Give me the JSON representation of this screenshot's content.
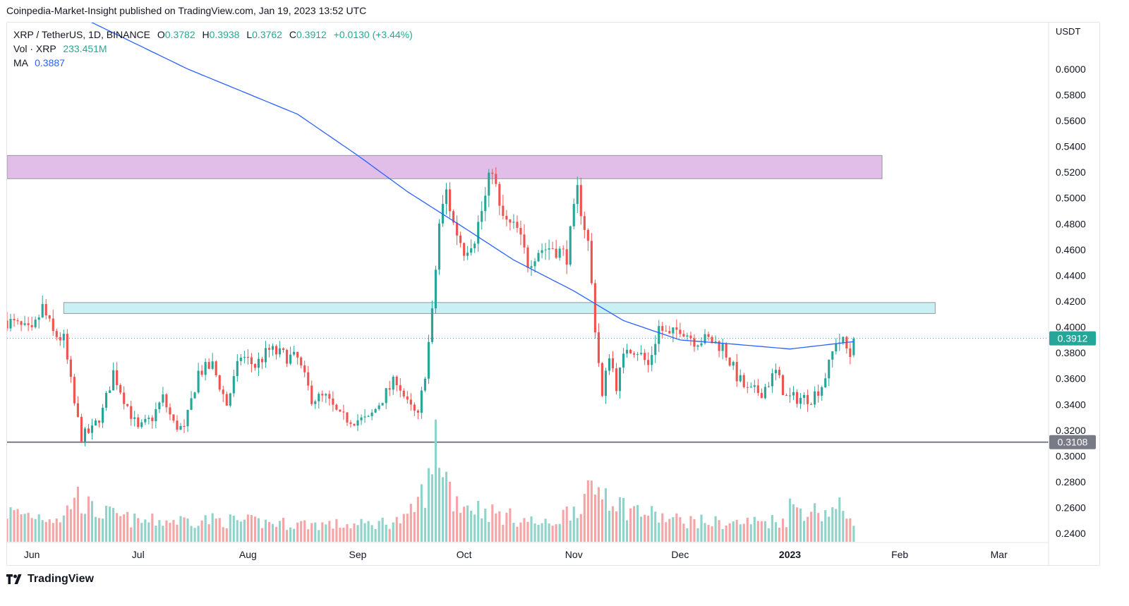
{
  "publisher_line": "Coinpedia-Market-Insight published on TradingView.com, Jan 19, 2023 13:52 UTC",
  "legend": {
    "symbol": "XRP / TetherUS, 1D, BINANCE",
    "open_label": "O",
    "open": "0.3782",
    "high_label": "H",
    "high": "0.3938",
    "low_label": "L",
    "low": "0.3762",
    "close_label": "C",
    "close": "0.3912",
    "change": "+0.0130 (+3.44%)",
    "vol_label": "Vol · XRP",
    "vol": "233.451M",
    "ma_label": "MA",
    "ma": "0.3887"
  },
  "brand": {
    "name": "TradingView"
  },
  "colors": {
    "up": "#26a69a",
    "down": "#ef5350",
    "vol_up": "#8fd3ca",
    "vol_down": "#f5a5a5",
    "ma": "#2962ff",
    "resistance_zone": "#e1bee7",
    "support_zone": "#c9f1f4",
    "support_line": "#787b86",
    "price_badge": "#26a69a",
    "support_badge": "#787b86"
  },
  "chart_data": {
    "type": "candlestick",
    "symbol": "XRP / TetherUS",
    "interval": "1D",
    "exchange": "BINANCE",
    "y_unit": "USDT",
    "ylim": [
      0.233,
      0.636
    ],
    "y_ticks": [
      "0.6000",
      "0.5800",
      "0.5600",
      "0.5400",
      "0.5200",
      "0.5000",
      "0.4800",
      "0.4600",
      "0.4400",
      "0.4200",
      "0.4000",
      "0.3800",
      "0.3600",
      "0.3400",
      "0.3200",
      "0.3000",
      "0.2800",
      "0.2600",
      "0.2400"
    ],
    "x_ticks": [
      {
        "label": "Jun",
        "date": "2022-06-01",
        "bold": false
      },
      {
        "label": "Jul",
        "date": "2022-07-01",
        "bold": false
      },
      {
        "label": "Aug",
        "date": "2022-08-01",
        "bold": false
      },
      {
        "label": "Sep",
        "date": "2022-09-01",
        "bold": false
      },
      {
        "label": "Oct",
        "date": "2022-10-01",
        "bold": false
      },
      {
        "label": "Nov",
        "date": "2022-11-01",
        "bold": false
      },
      {
        "label": "Dec",
        "date": "2022-12-01",
        "bold": false
      },
      {
        "label": "2023",
        "date": "2023-01-01",
        "bold": true
      },
      {
        "label": "Feb",
        "date": "2023-02-01",
        "bold": false
      },
      {
        "label": "Mar",
        "date": "2023-03-01",
        "bold": false
      }
    ],
    "x_range": [
      "2022-05-25",
      "2023-03-15"
    ],
    "price_path": [
      [
        "2022-05-25",
        0.405
      ],
      [
        "2022-06-01",
        0.395
      ],
      [
        "2022-06-04",
        0.415
      ],
      [
        "2022-06-07",
        0.395
      ],
      [
        "2022-06-10",
        0.39
      ],
      [
        "2022-06-13",
        0.34
      ],
      [
        "2022-06-15",
        0.315
      ],
      [
        "2022-06-18",
        0.32
      ],
      [
        "2022-06-21",
        0.335
      ],
      [
        "2022-06-24",
        0.365
      ],
      [
        "2022-06-27",
        0.345
      ],
      [
        "2022-07-01",
        0.32
      ],
      [
        "2022-07-05",
        0.33
      ],
      [
        "2022-07-08",
        0.345
      ],
      [
        "2022-07-11",
        0.325
      ],
      [
        "2022-07-14",
        0.32
      ],
      [
        "2022-07-18",
        0.365
      ],
      [
        "2022-07-22",
        0.37
      ],
      [
        "2022-07-26",
        0.34
      ],
      [
        "2022-07-30",
        0.378
      ],
      [
        "2022-08-03",
        0.37
      ],
      [
        "2022-08-07",
        0.382
      ],
      [
        "2022-08-11",
        0.378
      ],
      [
        "2022-08-15",
        0.375
      ],
      [
        "2022-08-19",
        0.345
      ],
      [
        "2022-08-23",
        0.345
      ],
      [
        "2022-08-27",
        0.33
      ],
      [
        "2022-08-31",
        0.328
      ],
      [
        "2022-09-04",
        0.328
      ],
      [
        "2022-09-08",
        0.345
      ],
      [
        "2022-09-12",
        0.36
      ],
      [
        "2022-09-15",
        0.34
      ],
      [
        "2022-09-18",
        0.33
      ],
      [
        "2022-09-20",
        0.365
      ],
      [
        "2022-09-22",
        0.41
      ],
      [
        "2022-09-24",
        0.48
      ],
      [
        "2022-09-26",
        0.505
      ],
      [
        "2022-09-28",
        0.48
      ],
      [
        "2022-10-01",
        0.46
      ],
      [
        "2022-10-04",
        0.47
      ],
      [
        "2022-10-07",
        0.5
      ],
      [
        "2022-10-09",
        0.525
      ],
      [
        "2022-10-11",
        0.49
      ],
      [
        "2022-10-13",
        0.48
      ],
      [
        "2022-10-16",
        0.475
      ],
      [
        "2022-10-19",
        0.45
      ],
      [
        "2022-10-22",
        0.46
      ],
      [
        "2022-10-26",
        0.462
      ],
      [
        "2022-10-30",
        0.455
      ],
      [
        "2022-11-02",
        0.505
      ],
      [
        "2022-11-05",
        0.465
      ],
      [
        "2022-11-07",
        0.4
      ],
      [
        "2022-11-09",
        0.345
      ],
      [
        "2022-11-11",
        0.38
      ],
      [
        "2022-11-13",
        0.355
      ],
      [
        "2022-11-16",
        0.385
      ],
      [
        "2022-11-19",
        0.382
      ],
      [
        "2022-11-22",
        0.37
      ],
      [
        "2022-11-25",
        0.4
      ],
      [
        "2022-11-28",
        0.392
      ],
      [
        "2022-12-01",
        0.4
      ],
      [
        "2022-12-05",
        0.39
      ],
      [
        "2022-12-09",
        0.39
      ],
      [
        "2022-12-13",
        0.385
      ],
      [
        "2022-12-17",
        0.362
      ],
      [
        "2022-12-20",
        0.35
      ],
      [
        "2022-12-24",
        0.35
      ],
      [
        "2022-12-28",
        0.365
      ],
      [
        "2022-12-31",
        0.345
      ],
      [
        "2023-01-03",
        0.345
      ],
      [
        "2023-01-07",
        0.345
      ],
      [
        "2023-01-10",
        0.355
      ],
      [
        "2023-01-12",
        0.37
      ],
      [
        "2023-01-14",
        0.39
      ],
      [
        "2023-01-16",
        0.388
      ],
      [
        "2023-01-18",
        0.378
      ],
      [
        "2023-01-19",
        0.391
      ]
    ],
    "volume_path_M": [
      [
        "2022-05-25",
        160
      ],
      [
        "2022-06-10",
        130
      ],
      [
        "2022-06-13",
        260
      ],
      [
        "2022-06-18",
        170
      ],
      [
        "2022-07-01",
        110
      ],
      [
        "2022-07-20",
        120
      ],
      [
        "2022-08-10",
        100
      ],
      [
        "2022-09-01",
        90
      ],
      [
        "2022-09-15",
        120
      ],
      [
        "2022-09-22",
        350
      ],
      [
        "2022-09-23",
        560
      ],
      [
        "2022-09-28",
        230
      ],
      [
        "2022-10-10",
        150
      ],
      [
        "2022-10-25",
        90
      ],
      [
        "2022-11-09",
        300
      ],
      [
        "2022-11-15",
        190
      ],
      [
        "2022-11-28",
        120
      ],
      [
        "2022-12-15",
        100
      ],
      [
        "2022-12-31",
        120
      ],
      [
        "2023-01-01",
        190
      ],
      [
        "2023-01-10",
        160
      ],
      [
        "2023-01-15",
        180
      ],
      [
        "2023-01-19",
        130
      ]
    ],
    "ma_path": [
      [
        "2022-06-15",
        0.64
      ],
      [
        "2022-07-15",
        0.6
      ],
      [
        "2022-08-15",
        0.565
      ],
      [
        "2022-09-01",
        0.533
      ],
      [
        "2022-09-15",
        0.505
      ],
      [
        "2022-10-01",
        0.477
      ],
      [
        "2022-10-15",
        0.452
      ],
      [
        "2022-11-01",
        0.428
      ],
      [
        "2022-11-15",
        0.405
      ],
      [
        "2022-12-01",
        0.39
      ],
      [
        "2022-12-15",
        0.387
      ],
      [
        "2023-01-01",
        0.383
      ],
      [
        "2023-01-19",
        0.3887
      ]
    ],
    "zones": [
      {
        "from": "2022-05-25",
        "to": "2023-01-27",
        "low": 0.515,
        "high": 0.533,
        "color": "resistance_zone"
      },
      {
        "from": "2022-06-10",
        "to": "2023-02-11",
        "low": 0.4105,
        "high": 0.419,
        "color": "support_zone"
      }
    ],
    "support_line": {
      "value": 0.3108,
      "label": "0.3108"
    },
    "last_price": {
      "value": 0.3912,
      "label": "0.3912"
    }
  }
}
